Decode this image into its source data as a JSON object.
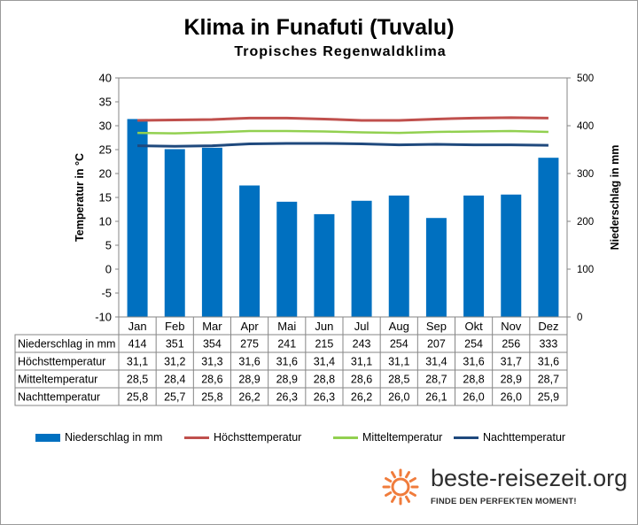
{
  "title": "Klima in Funafuti (Tuvalu)",
  "subtitle": "Tropisches Regenwaldklima",
  "logo": {
    "text": "beste-reisezeit.org",
    "tagline": "FINDE DEN PERFEKTEN MOMENT!",
    "icon": "sun-icon"
  },
  "colors": {
    "niederschlag": "#0070c0",
    "hoechst": "#c0504d",
    "mittel": "#92d050",
    "nacht": "#1f497d",
    "sun": "#f07c3c"
  },
  "chart_data": {
    "type": "bar",
    "categories": [
      "Jan",
      "Feb",
      "Mar",
      "Apr",
      "Mai",
      "Jun",
      "Jul",
      "Aug",
      "Sep",
      "Okt",
      "Nov",
      "Dez"
    ],
    "y_left": {
      "label": "Temperatur in °C",
      "ylim": [
        -10,
        40
      ],
      "ticks": [
        "-10",
        "-5",
        "0",
        "5",
        "10",
        "15",
        "20",
        "25",
        "30",
        "35",
        "40"
      ]
    },
    "y_right": {
      "label": "Niederschlag in mm",
      "ylim": [
        0,
        500
      ],
      "ticks": [
        "0",
        "100",
        "200",
        "300",
        "400",
        "500"
      ]
    },
    "grid": false,
    "legend_position": "bottom",
    "series": [
      {
        "name": "Niederschlag in mm",
        "type": "bar",
        "axis": "right",
        "values": [
          414,
          351,
          354,
          275,
          241,
          215,
          243,
          254,
          207,
          254,
          256,
          333
        ],
        "labels": [
          "414",
          "351",
          "354",
          "275",
          "241",
          "215",
          "243",
          "254",
          "207",
          "254",
          "256",
          "333"
        ]
      },
      {
        "name": "Höchsttemperatur",
        "type": "line",
        "axis": "left",
        "values": [
          31.1,
          31.2,
          31.3,
          31.6,
          31.6,
          31.4,
          31.1,
          31.1,
          31.4,
          31.6,
          31.7,
          31.6
        ],
        "labels": [
          "31,1",
          "31,2",
          "31,3",
          "31,6",
          "31,6",
          "31,4",
          "31,1",
          "31,1",
          "31,4",
          "31,6",
          "31,7",
          "31,6"
        ]
      },
      {
        "name": "Mitteltemperatur",
        "type": "line",
        "axis": "left",
        "values": [
          28.5,
          28.4,
          28.6,
          28.9,
          28.9,
          28.8,
          28.6,
          28.5,
          28.7,
          28.8,
          28.9,
          28.7
        ],
        "labels": [
          "28,5",
          "28,4",
          "28,6",
          "28,9",
          "28,9",
          "28,8",
          "28,6",
          "28,5",
          "28,7",
          "28,8",
          "28,9",
          "28,7"
        ]
      },
      {
        "name": "Nachttemperatur",
        "type": "line",
        "axis": "left",
        "values": [
          25.8,
          25.7,
          25.8,
          26.2,
          26.3,
          26.3,
          26.2,
          26.0,
          26.1,
          26.0,
          26.0,
          25.9
        ],
        "labels": [
          "25,8",
          "25,7",
          "25,8",
          "26,2",
          "26,3",
          "26,3",
          "26,2",
          "26,0",
          "26,1",
          "26,0",
          "26,0",
          "25,9"
        ]
      }
    ]
  }
}
